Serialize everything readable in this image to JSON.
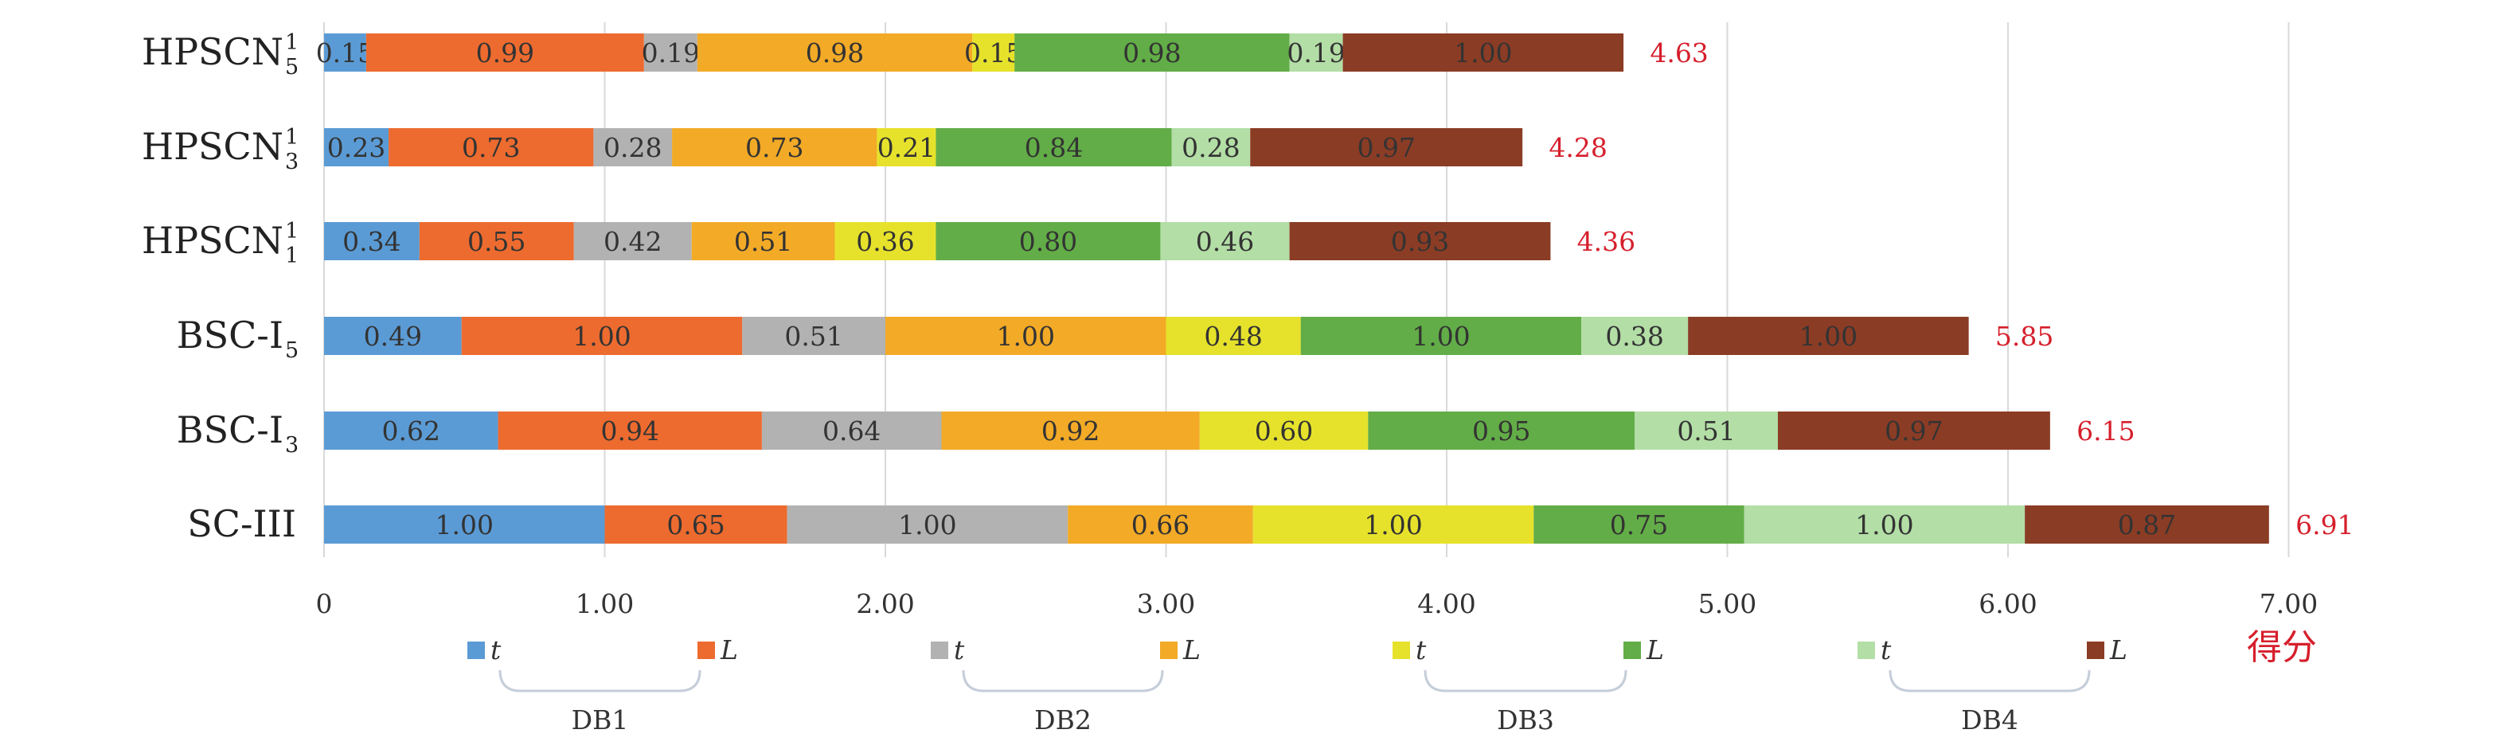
{
  "chart_data": {
    "type": "bar",
    "orientation": "horizontal",
    "stacked": true,
    "title": "",
    "xlabel": "得分",
    "ylabel": "",
    "xlim": [
      0,
      7
    ],
    "x_ticks": [
      "0",
      "1.00",
      "2.00",
      "3.00",
      "4.00",
      "5.00",
      "6.00",
      "7.00"
    ],
    "x_tick_values": [
      0,
      1,
      2,
      3,
      4,
      5,
      6,
      7
    ],
    "grid": "vertical",
    "legend_position": "bottom",
    "categories": [
      {
        "name": "HPSCN",
        "sup": "1",
        "sub": "5"
      },
      {
        "name": "HPSCN",
        "sup": "1",
        "sub": "3"
      },
      {
        "name": "HPSCN",
        "sup": "1",
        "sub": "1"
      },
      {
        "name": "BSC-I",
        "sup": "",
        "sub": "5"
      },
      {
        "name": "BSC-I",
        "sup": "",
        "sub": "3"
      },
      {
        "name": "SC-III",
        "sup": "",
        "sub": ""
      }
    ],
    "series": [
      {
        "name": "t",
        "group": "DB1",
        "color": "#5b9bd5",
        "values": [
          0.15,
          0.23,
          0.34,
          0.49,
          0.62,
          1.0
        ]
      },
      {
        "name": "L",
        "group": "DB1",
        "color": "#ed6b2f",
        "values": [
          0.99,
          0.73,
          0.55,
          1.0,
          0.94,
          0.65
        ]
      },
      {
        "name": "t",
        "group": "DB2",
        "color": "#b2b2b2",
        "values": [
          0.19,
          0.28,
          0.42,
          0.51,
          0.64,
          1.0
        ]
      },
      {
        "name": "L",
        "group": "DB2",
        "color": "#f2aa27",
        "values": [
          0.98,
          0.73,
          0.51,
          1.0,
          0.92,
          0.66
        ]
      },
      {
        "name": "t",
        "group": "DB3",
        "color": "#e6e22b",
        "values": [
          0.15,
          0.21,
          0.36,
          0.48,
          0.6,
          1.0
        ]
      },
      {
        "name": "L",
        "group": "DB3",
        "color": "#62ad47",
        "values": [
          0.98,
          0.84,
          0.8,
          1.0,
          0.95,
          0.75
        ]
      },
      {
        "name": "t",
        "group": "DB4",
        "color": "#b3dea6",
        "values": [
          0.19,
          0.28,
          0.46,
          0.38,
          0.51,
          1.0
        ]
      },
      {
        "name": "L",
        "group": "DB4",
        "color": "#8b3c25",
        "values": [
          1.0,
          0.97,
          0.93,
          1.0,
          0.97,
          0.87
        ]
      }
    ],
    "totals": [
      "4.63",
      "4.28",
      "4.36",
      "5.85",
      "6.15",
      "6.91"
    ],
    "groups": [
      "DB1",
      "DB2",
      "DB3",
      "DB4"
    ],
    "colors": {
      "total_label": "#d61f2c",
      "axis_title": "#d61f2c",
      "grid": "#d9d9d9",
      "text": "#333333",
      "bracket": "#c4cdd8"
    }
  }
}
